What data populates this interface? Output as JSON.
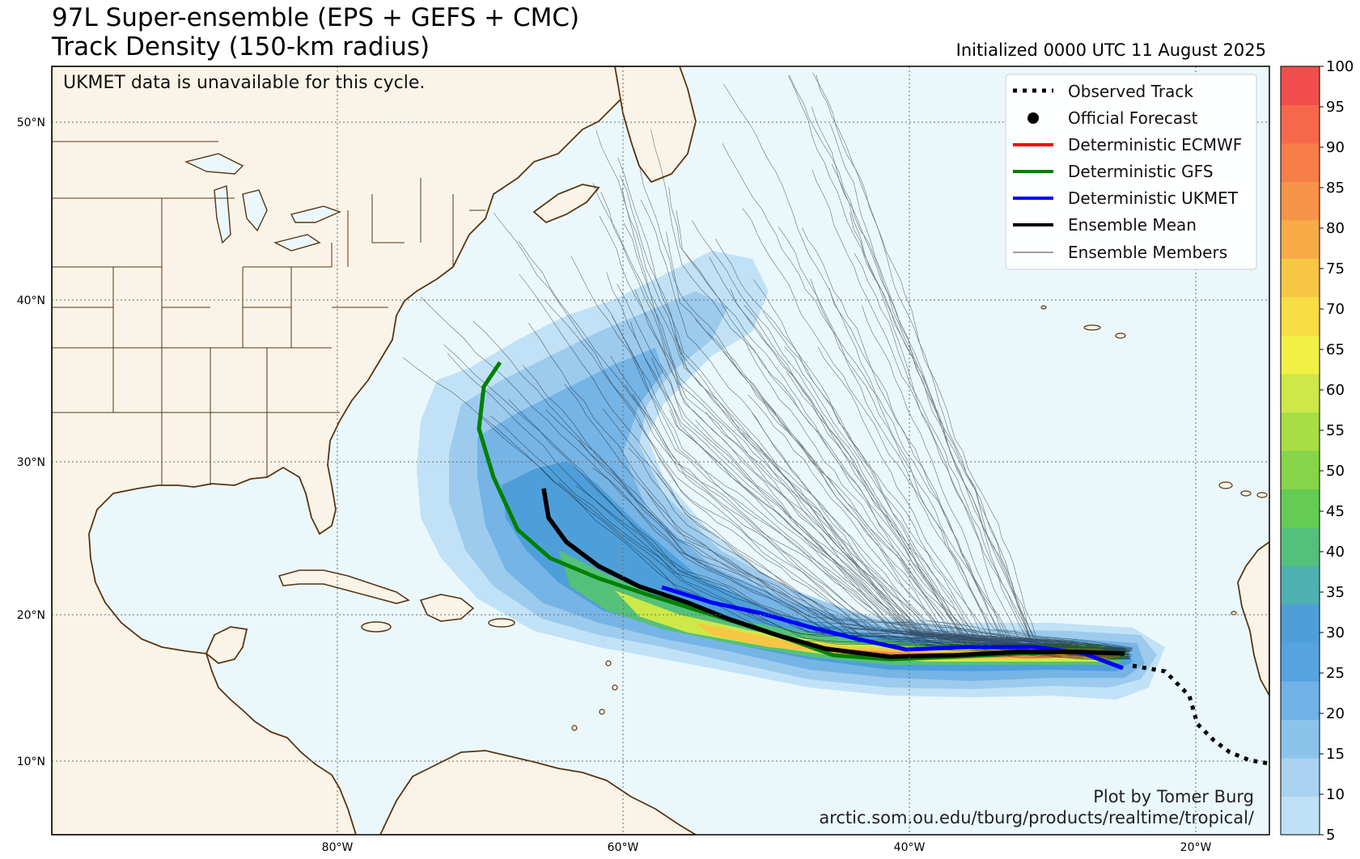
{
  "title": {
    "line1": "97L Super-ensemble (EPS + GEFS + CMC)",
    "line2": "Track Density (150-km radius)",
    "initialized": "Initialized 0000 UTC 11 August 2025"
  },
  "note": "UKMET data is unavailable for this cycle.",
  "credit": {
    "line1": "Plot by Tomer Burg",
    "line2": "arctic.som.ou.edu/tburg/products/realtime/tropical/"
  },
  "axes": {
    "lon_ticks": [
      "80°W",
      "60°W",
      "40°W",
      "20°W"
    ],
    "lat_ticks": [
      "50°N",
      "40°N",
      "30°N",
      "20°N",
      "10°N"
    ]
  },
  "legend": {
    "items": [
      {
        "label": "Observed Track",
        "style": "dotted",
        "color": "#000000"
      },
      {
        "label": "Official Forecast",
        "style": "dot",
        "color": "#000000"
      },
      {
        "label": "Deterministic ECMWF",
        "style": "line",
        "color": "#ff0000"
      },
      {
        "label": "Deterministic GFS",
        "style": "line",
        "color": "#008000"
      },
      {
        "label": "Deterministic UKMET",
        "style": "line",
        "color": "#0000ff"
      },
      {
        "label": "Ensemble Mean",
        "style": "line",
        "color": "#000000"
      },
      {
        "label": "Ensemble Members",
        "style": "thin",
        "color": "#000000"
      }
    ]
  },
  "colorbar": {
    "ticks": [
      "100",
      "95",
      "90",
      "85",
      "80",
      "75",
      "70",
      "65",
      "60",
      "55",
      "50",
      "45",
      "40",
      "35",
      "30",
      "25",
      "20",
      "15",
      "10",
      "5"
    ],
    "colors": [
      "#bfe0f5",
      "#a8d2f0",
      "#8cc3eb",
      "#70b2e6",
      "#55a3e0",
      "#4e9fd9",
      "#4eb0b0",
      "#55c07a",
      "#64cc52",
      "#86d448",
      "#a6de44",
      "#cde848",
      "#f2f045",
      "#f8dd45",
      "#f7c645",
      "#f7ac48",
      "#f79448",
      "#f77e48",
      "#f7684a",
      "#f24e4e"
    ]
  },
  "map_colors": {
    "land": "#faf4e8",
    "ocean": "#eaf8fc",
    "coast": "#5a3410",
    "ecmwf": "#ff0000",
    "gfs": "#008000",
    "ukmet": "#0000ff",
    "mean": "#000000"
  }
}
